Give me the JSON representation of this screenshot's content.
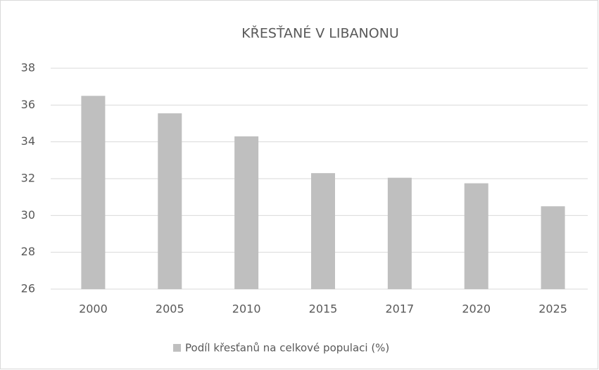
{
  "chart_data": {
    "type": "bar",
    "title": "KŘESŤANÉ V LIBANONU",
    "categories": [
      "2000",
      "2005",
      "2010",
      "2015",
      "2017",
      "2020",
      "2025"
    ],
    "series": [
      {
        "name": "Podíl křesťanů na celkové populaci (%)",
        "color": "#bfbfbf",
        "values": [
          36.5,
          35.55,
          34.3,
          32.3,
          32.05,
          31.75,
          30.5
        ]
      }
    ],
    "ylim": [
      26,
      38
    ],
    "yticks": [
      26,
      28,
      30,
      32,
      34,
      36,
      38
    ],
    "grid": true,
    "legend": "bottom"
  }
}
